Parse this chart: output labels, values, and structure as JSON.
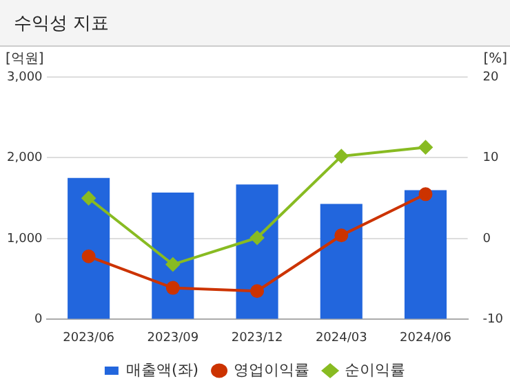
{
  "chart_data": {
    "type": "bar",
    "title": "수익성 지표",
    "ylabel": "[억원]",
    "y2label": "[%]",
    "categories": [
      "2023/06",
      "2023/09",
      "2023/12",
      "2024/03",
      "2024/06"
    ],
    "series": [
      {
        "name": "매출액(좌)",
        "color": "#2266dd",
        "values": [
          1750,
          1570,
          1670,
          1430,
          1600
        ]
      },
      {
        "name": "영업이익률",
        "type": "line",
        "axis": "y2",
        "color": "#cc3300",
        "marker": "circle",
        "values": [
          -2.2,
          -6.1,
          -6.5,
          0.4,
          5.5
        ]
      },
      {
        "name": "순이익률",
        "type": "line",
        "axis": "y2",
        "color": "#88bb22",
        "marker": "diamond",
        "values": [
          5.0,
          -3.2,
          0.1,
          10.2,
          11.3
        ]
      }
    ],
    "ylim": [
      0,
      3000
    ],
    "yticks": [
      {
        "value": 0,
        "label": "0"
      },
      {
        "value": 1000,
        "label": "1,000"
      },
      {
        "value": 2000,
        "label": "2,000"
      },
      {
        "value": 3000,
        "label": "3,000"
      }
    ],
    "y2lim": [
      -10,
      20
    ],
    "y2ticks": [
      -10,
      0,
      10,
      20
    ],
    "grid": "y",
    "legend": "bottom"
  }
}
